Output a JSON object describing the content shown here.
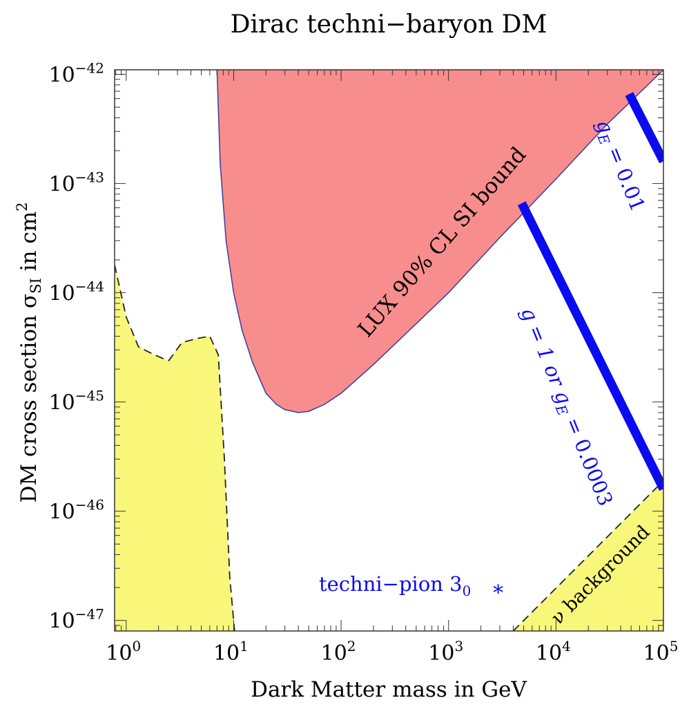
{
  "chart_data": {
    "type": "area",
    "title": "Dirac techni−baryon DM",
    "xlabel": "Dark Matter mass in GeV",
    "ylabel": {
      "main": "DM cross section σ",
      "sub": "SI",
      "tail": " in cm",
      "sup": "2"
    },
    "x_scale": "log",
    "y_scale": "log",
    "xlim": [
      0.78,
      100000
    ],
    "ylim": [
      8e-48,
      1.1e-42
    ],
    "x_ticks": [
      {
        "value": 1,
        "base": "10",
        "exp": "0"
      },
      {
        "value": 10,
        "base": "10",
        "exp": "1"
      },
      {
        "value": 100,
        "base": "10",
        "exp": "2"
      },
      {
        "value": 1000,
        "base": "10",
        "exp": "3"
      },
      {
        "value": 10000,
        "base": "10",
        "exp": "4"
      },
      {
        "value": 100000,
        "base": "10",
        "exp": "5"
      }
    ],
    "y_ticks": [
      {
        "value": 1e-47,
        "base": "10",
        "exp": "−47"
      },
      {
        "value": 1e-46,
        "base": "10",
        "exp": "−46"
      },
      {
        "value": 1e-45,
        "base": "10",
        "exp": "−45"
      },
      {
        "value": 1e-44,
        "base": "10",
        "exp": "−44"
      },
      {
        "value": 1e-43,
        "base": "10",
        "exp": "−43"
      },
      {
        "value": 1e-42,
        "base": "10",
        "exp": "−42"
      }
    ],
    "colors": {
      "lux_fill": "#f88d8d",
      "lux_edge": "#3a3a9a",
      "neutrino_fill": "#f9f77a",
      "blue": "#0b0bf0"
    },
    "series": [
      {
        "name": "LUX 90% CL SI bound",
        "kind": "excluded-region-boundary",
        "x": [
          7.0,
          7.5,
          8.5,
          10,
          12,
          15,
          20,
          25,
          30,
          40,
          50,
          70,
          100,
          200,
          500,
          1000,
          3000,
          10000,
          30000,
          100000
        ],
        "y": [
          1.1e-42,
          1.5e-43,
          3e-44,
          1e-44,
          4.5e-45,
          2.3e-45,
          1.2e-45,
          9.5e-46,
          8.5e-46,
          8e-46,
          8.2e-46,
          9.5e-46,
          1.2e-45,
          2.2e-45,
          5.2e-45,
          1e-44,
          3.2e-44,
          1.1e-43,
          3.5e-43,
          1.1e-42
        ]
      },
      {
        "name": "",
        "kind": "neutrino-floor-low-mass",
        "x": [
          0.78,
          1.0,
          1.3,
          1.7,
          2.2,
          2.5,
          3.3,
          4.5,
          6.0,
          7.2,
          8.2,
          9.2,
          10.2,
          11.0
        ],
        "y": [
          1.8e-44,
          6e-45,
          3.2e-45,
          2.8e-45,
          2.5e-45,
          2.4e-45,
          3.5e-45,
          3.8e-45,
          4e-45,
          2.7e-45,
          3e-46,
          2.5e-47,
          8e-48,
          8e-48
        ]
      },
      {
        "name": "ν background",
        "kind": "neutrino-floor-high-mass",
        "x": [
          4000,
          100000
        ],
        "y": [
          8e-48,
          1.9e-46
        ]
      },
      {
        "name": "g = 1 or g_E = 0.0003",
        "kind": "prediction-band",
        "x": [
          4800,
          100000
        ],
        "y": [
          6.6e-44,
          1.6e-46
        ]
      },
      {
        "name": "g_E = 0.01",
        "kind": "prediction-band",
        "x": [
          48000,
          100000
        ],
        "y": [
          6.6e-43,
          1.6e-43
        ]
      }
    ],
    "annotations": [
      {
        "text": "LUX 90% CL SI bound",
        "kind": "region-label"
      },
      {
        "text": "ν background",
        "kind": "region-label"
      },
      {
        "text": "g = 1 or g",
        "sub": "E",
        "tail": " = 0.0003",
        "kind": "band-label"
      },
      {
        "text": "g",
        "sub": "E",
        "tail": " = 0.01",
        "kind": "band-label"
      },
      {
        "text": "techni−pion 3",
        "sub": "0",
        "marker": "*",
        "kind": "point-label",
        "x": 2900,
        "y": 2e-47
      }
    ]
  }
}
